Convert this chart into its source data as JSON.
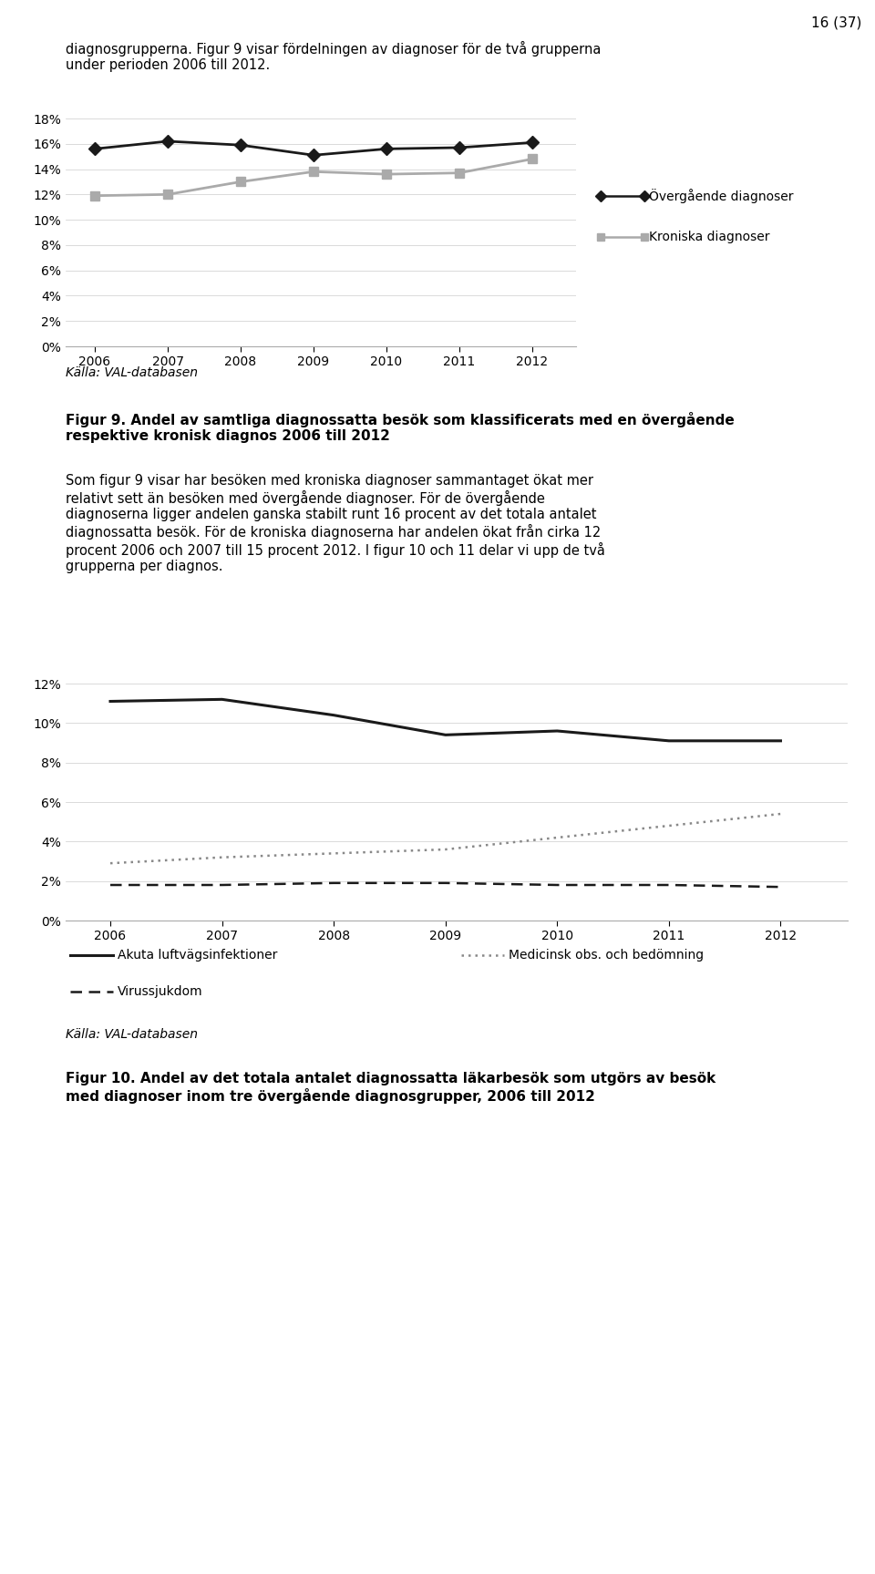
{
  "page_header": "16 (37)",
  "intro_text": "diagnosgrupperna. Figur 9 visar fördelningen av diagnoser för de två grupperna\nunder perioden 2006 till 2012.",
  "chart1": {
    "years": [
      2006,
      2007,
      2008,
      2009,
      2010,
      2011,
      2012
    ],
    "overgaende": [
      0.156,
      0.162,
      0.159,
      0.151,
      0.156,
      0.157,
      0.161
    ],
    "kroniska": [
      0.119,
      0.12,
      0.13,
      0.138,
      0.136,
      0.137,
      0.148
    ],
    "overgaende_color": "#1a1a1a",
    "kroniska_color": "#aaaaaa",
    "ylim": [
      0,
      0.18
    ],
    "yticks": [
      0,
      0.02,
      0.04,
      0.06,
      0.08,
      0.1,
      0.12,
      0.14,
      0.16,
      0.18
    ],
    "legend_overgaende": "Övergående diagnoser",
    "legend_kroniska": "Kroniska diagnoser",
    "source": "Källa: VAL-databasen"
  },
  "fig9_caption_bold": "Figur 9. Andel av samtliga diagnossatta besök som klassificerats med en övergående\nrespektive kronisk diagnos 2006 till 2012",
  "body_text": "Som figur 9 visar har besöken med kroniska diagnoser sammantaget ökat mer\nrelativt sett än besöken med övergående diagnoser. För de övergående\ndiagnoserna ligger andelen ganska stabilt runt 16 procent av det totala antalet\ndiagnossatta besök. För de kroniska diagnoserna har andelen ökat från cirka 12\nprocent 2006 och 2007 till 15 procent 2012. I figur 10 och 11 delar vi upp de två\ngrupperna per diagnos.",
  "chart2": {
    "years": [
      2006,
      2007,
      2008,
      2009,
      2010,
      2011,
      2012
    ],
    "akuta": [
      0.111,
      0.112,
      0.104,
      0.094,
      0.096,
      0.091,
      0.091
    ],
    "medicinsk": [
      0.029,
      0.032,
      0.034,
      0.036,
      0.042,
      0.048,
      0.054
    ],
    "virus": [
      0.018,
      0.018,
      0.019,
      0.019,
      0.018,
      0.018,
      0.017
    ],
    "akuta_color": "#1a1a1a",
    "medicinsk_color": "#888888",
    "virus_color": "#1a1a1a",
    "ylim": [
      0,
      0.12
    ],
    "yticks": [
      0,
      0.02,
      0.04,
      0.06,
      0.08,
      0.1,
      0.12
    ],
    "legend_akuta": "Akuta luftvägsinfektioner",
    "legend_medicinsk": "Medicinsk obs. och bedömning",
    "legend_virus": "Virussjukdom",
    "source": "Källa: VAL-databasen"
  },
  "fig10_caption_bold": "Figur 10. Andel av det totala antalet diagnossatta läkarbesök som utgörs av besök\nmed diagnoser inom tre övergående diagnosgrupper, 2006 till 2012",
  "background_color": "#ffffff",
  "text_color": "#000000"
}
